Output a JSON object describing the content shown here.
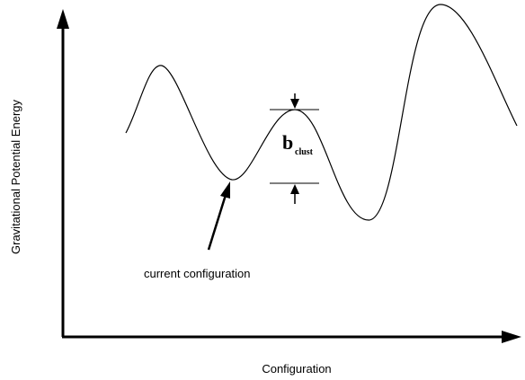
{
  "axes": {
    "x_label": "Configuration",
    "y_label": "Gravitational Potential Energy"
  },
  "annotations": {
    "barrier": {
      "symbol": "b",
      "subscript": "clust"
    },
    "pointer": "current configuration"
  }
}
